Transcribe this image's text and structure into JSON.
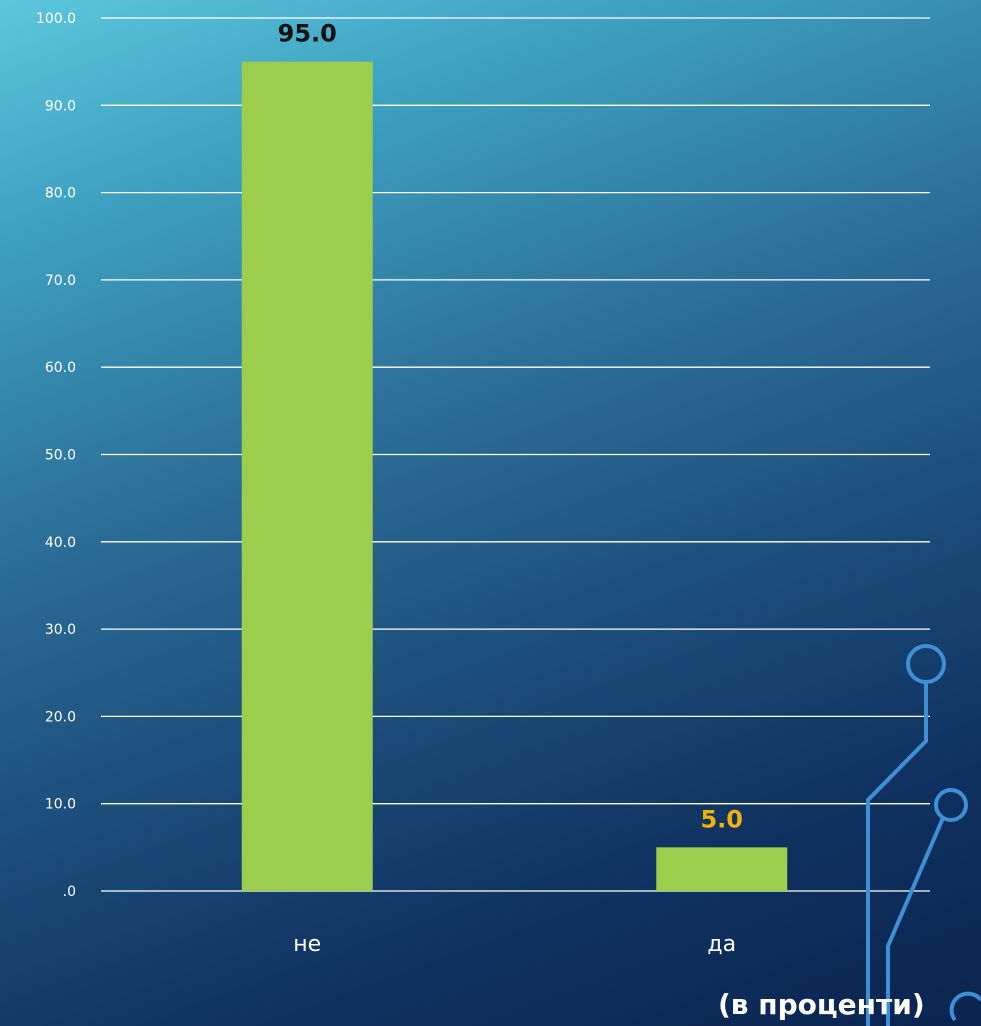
{
  "chart_data": {
    "type": "bar",
    "categories": [
      "не",
      "да"
    ],
    "values": [
      95.0,
      5.0
    ],
    "value_labels": [
      "95.0",
      "5.0"
    ],
    "y_tick_labels": [
      ".0",
      "10.0",
      "20.0",
      "30.0",
      "40.0",
      "50.0",
      "60.0",
      "70.0",
      "80.0",
      "90.0",
      "100.0"
    ],
    "ylim": [
      0,
      100
    ],
    "grid": true,
    "bar_color": "#9ccd4c",
    "value_label_colors": [
      "#111111",
      "#f2b10a"
    ],
    "unit_note": "(в проценти)"
  }
}
